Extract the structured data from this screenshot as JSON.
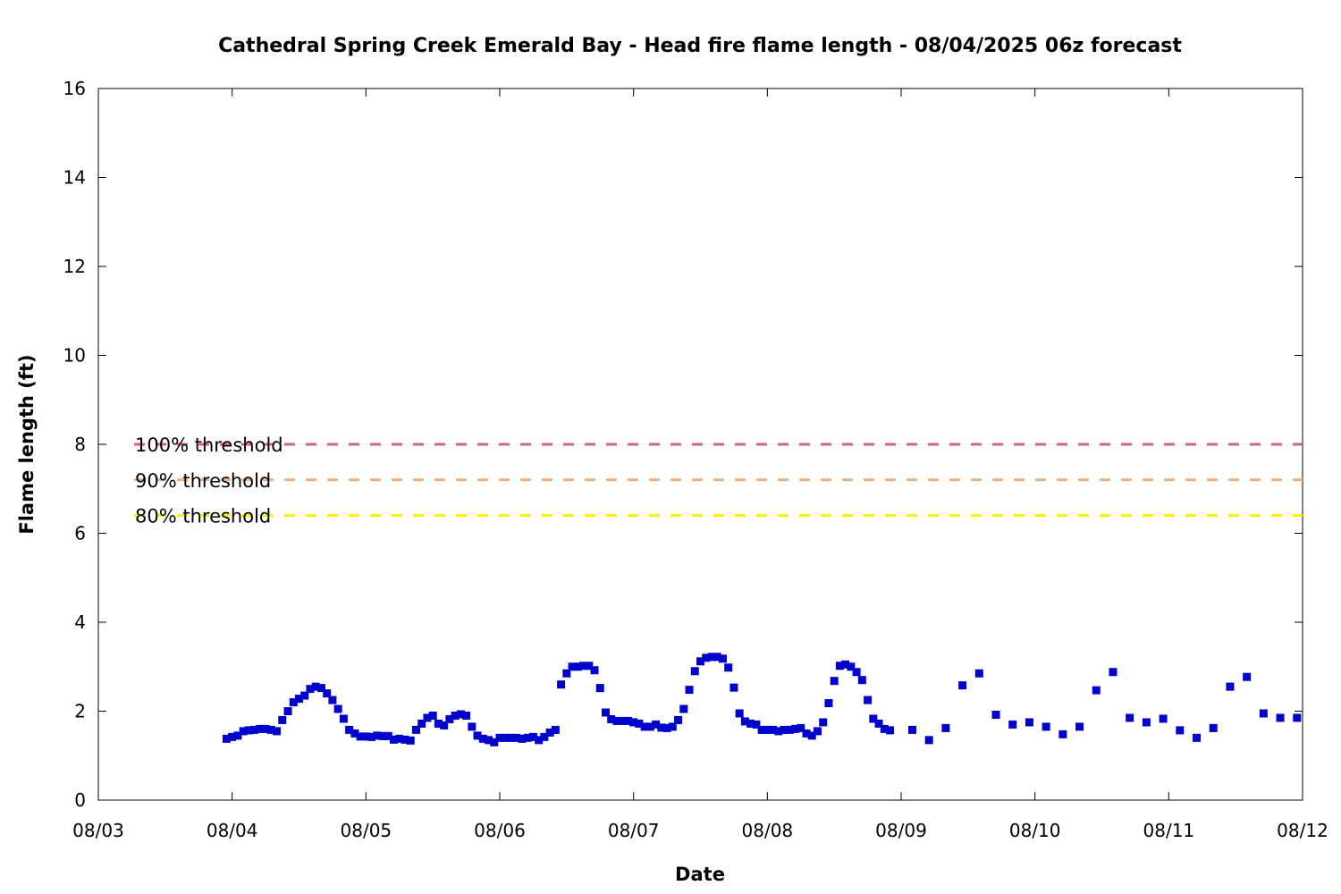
{
  "chart_data": {
    "type": "scatter",
    "title": "Cathedral Spring Creek Emerald Bay - Head fire flame length - 08/04/2025 06z forecast",
    "xlabel": "Date",
    "ylabel": "Flame length (ft)",
    "xlim": [
      "08/03",
      "08/12"
    ],
    "ylim": [
      0,
      16
    ],
    "x_tick_labels": [
      "08/03",
      "08/04",
      "08/05",
      "08/06",
      "08/07",
      "08/08",
      "08/09",
      "08/10",
      "08/11",
      "08/12"
    ],
    "y_tick_labels": [
      "0",
      "2",
      "4",
      "6",
      "8",
      "10",
      "12",
      "14",
      "16"
    ],
    "grid": false,
    "legend_position": "left, next to threshold lines",
    "marker_color": "#0000cc",
    "thresholds": [
      {
        "name": "100% threshold",
        "value": 8.0,
        "color": "#d95f7a"
      },
      {
        "name": "90% threshold",
        "value": 7.2,
        "color": "#f0b080"
      },
      {
        "name": "80% threshold",
        "value": 6.4,
        "color": "#f5f500"
      }
    ],
    "series": [
      {
        "name": "",
        "x": [
          "08/03 23:00",
          "08/04 00:00",
          "08/04 01:00",
          "08/04 02:00",
          "08/04 03:00",
          "08/04 04:00",
          "08/04 05:00",
          "08/04 06:00",
          "08/04 07:00",
          "08/04 08:00",
          "08/04 09:00",
          "08/04 10:00",
          "08/04 11:00",
          "08/04 12:00",
          "08/04 13:00",
          "08/04 14:00",
          "08/04 15:00",
          "08/04 16:00",
          "08/04 17:00",
          "08/04 18:00",
          "08/04 19:00",
          "08/04 20:00",
          "08/04 21:00",
          "08/04 22:00",
          "08/04 23:00",
          "08/05 00:00",
          "08/05 01:00",
          "08/05 02:00",
          "08/05 03:00",
          "08/05 04:00",
          "08/05 05:00",
          "08/05 06:00",
          "08/05 07:00",
          "08/05 08:00",
          "08/05 09:00",
          "08/05 10:00",
          "08/05 11:00",
          "08/05 12:00",
          "08/05 13:00",
          "08/05 14:00",
          "08/05 15:00",
          "08/05 16:00",
          "08/05 17:00",
          "08/05 18:00",
          "08/05 19:00",
          "08/05 20:00",
          "08/05 21:00",
          "08/05 22:00",
          "08/05 23:00",
          "08/06 00:00",
          "08/06 01:00",
          "08/06 02:00",
          "08/06 03:00",
          "08/06 04:00",
          "08/06 05:00",
          "08/06 06:00",
          "08/06 07:00",
          "08/06 08:00",
          "08/06 09:00",
          "08/06 10:00",
          "08/06 11:00",
          "08/06 12:00",
          "08/06 13:00",
          "08/06 14:00",
          "08/06 15:00",
          "08/06 16:00",
          "08/06 17:00",
          "08/06 18:00",
          "08/06 19:00",
          "08/06 20:00",
          "08/06 21:00",
          "08/06 22:00",
          "08/06 23:00",
          "08/07 00:00",
          "08/07 01:00",
          "08/07 02:00",
          "08/07 03:00",
          "08/07 04:00",
          "08/07 05:00",
          "08/07 06:00",
          "08/07 07:00",
          "08/07 08:00",
          "08/07 09:00",
          "08/07 10:00",
          "08/07 11:00",
          "08/07 12:00",
          "08/07 13:00",
          "08/07 14:00",
          "08/07 15:00",
          "08/07 16:00",
          "08/07 17:00",
          "08/07 18:00",
          "08/07 19:00",
          "08/07 20:00",
          "08/07 21:00",
          "08/07 22:00",
          "08/07 23:00",
          "08/08 00:00",
          "08/08 01:00",
          "08/08 02:00",
          "08/08 03:00",
          "08/08 04:00",
          "08/08 05:00",
          "08/08 06:00",
          "08/08 07:00",
          "08/08 08:00",
          "08/08 09:00",
          "08/08 10:00",
          "08/08 11:00",
          "08/08 12:00",
          "08/08 13:00",
          "08/08 14:00",
          "08/08 15:00",
          "08/08 16:00",
          "08/08 17:00",
          "08/08 18:00",
          "08/08 19:00",
          "08/08 20:00",
          "08/08 21:00",
          "08/08 22:00",
          "08/09 02:00",
          "08/09 05:00",
          "08/09 08:00",
          "08/09 11:00",
          "08/09 14:00",
          "08/09 17:00",
          "08/09 20:00",
          "08/09 23:00",
          "08/10 02:00",
          "08/10 05:00",
          "08/10 08:00",
          "08/10 11:00",
          "08/10 14:00",
          "08/10 17:00",
          "08/10 20:00",
          "08/10 23:00",
          "08/11 02:00",
          "08/11 05:00",
          "08/11 08:00",
          "08/11 11:00",
          "08/11 14:00",
          "08/11 17:00",
          "08/11 20:00",
          "08/11 23:00"
        ],
        "y": [
          1.38,
          1.42,
          1.45,
          1.55,
          1.57,
          1.58,
          1.6,
          1.6,
          1.58,
          1.55,
          1.8,
          2.0,
          2.2,
          2.28,
          2.35,
          2.5,
          2.55,
          2.52,
          2.4,
          2.25,
          2.05,
          1.83,
          1.58,
          1.5,
          1.43,
          1.43,
          1.42,
          1.45,
          1.44,
          1.44,
          1.36,
          1.38,
          1.36,
          1.34,
          1.58,
          1.72,
          1.85,
          1.9,
          1.72,
          1.68,
          1.82,
          1.9,
          1.93,
          1.9,
          1.65,
          1.45,
          1.38,
          1.35,
          1.3,
          1.4,
          1.4,
          1.4,
          1.4,
          1.38,
          1.4,
          1.42,
          1.35,
          1.42,
          1.52,
          1.58,
          2.6,
          2.85,
          3.0,
          3.0,
          3.02,
          3.02,
          2.92,
          2.52,
          1.97,
          1.82,
          1.78,
          1.78,
          1.78,
          1.75,
          1.72,
          1.65,
          1.65,
          1.7,
          1.63,
          1.62,
          1.65,
          1.8,
          2.05,
          2.48,
          2.9,
          3.12,
          3.2,
          3.22,
          3.22,
          3.18,
          2.98,
          2.53,
          1.95,
          1.77,
          1.72,
          1.7,
          1.58,
          1.58,
          1.58,
          1.55,
          1.58,
          1.58,
          1.6,
          1.62,
          1.5,
          1.45,
          1.55,
          1.75,
          2.18,
          2.68,
          3.02,
          3.05,
          3.0,
          2.88,
          2.7,
          2.25,
          1.83,
          1.72,
          1.6,
          1.57,
          1.58,
          1.35,
          1.62,
          2.58,
          2.85,
          1.92,
          1.7,
          1.75,
          1.65,
          1.48,
          1.65,
          2.47,
          2.88,
          1.85,
          1.75,
          1.83,
          1.57,
          1.4,
          1.62,
          2.55,
          2.77,
          1.95,
          1.85,
          1.85
        ]
      }
    ]
  }
}
